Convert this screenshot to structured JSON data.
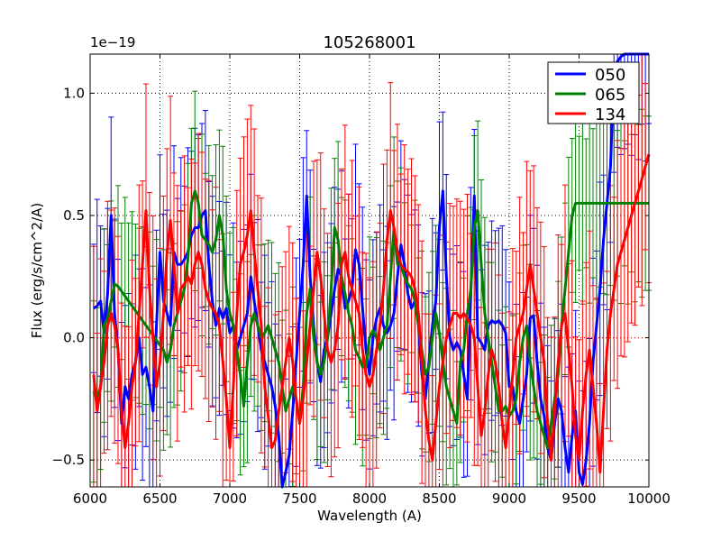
{
  "chart_data": {
    "type": "line",
    "title": "105268001",
    "xlabel": "Wavelength (A)",
    "ylabel": "Flux (erg/s/cm^2/A)",
    "offset_text": "1e−19",
    "scale": 1e-19,
    "xlim": [
      6000,
      10000
    ],
    "ylim": [
      -0.61,
      1.16
    ],
    "xticks": [
      6000,
      6500,
      7000,
      7500,
      8000,
      8500,
      9000,
      9500,
      10000
    ],
    "xtick_labels": [
      "6000",
      "6500",
      "7000",
      "7500",
      "8000",
      "8500",
      "9000",
      "9500",
      "10000"
    ],
    "yticks": [
      -0.5,
      0.0,
      0.5,
      1.0
    ],
    "ytick_labels": [
      "−0.5",
      "0.0",
      "0.5",
      "1.0"
    ],
    "grid": true,
    "legend_position": "top-right",
    "series": [
      {
        "name": "050",
        "color": "#0000ff",
        "x": [
          6025,
          6050,
          6075,
          6100,
          6125,
          6150,
          6175,
          6200,
          6225,
          6250,
          6275,
          6300,
          6325,
          6350,
          6375,
          6400,
          6425,
          6450,
          6475,
          6500,
          6525,
          6550,
          6575,
          6600,
          6625,
          6650,
          6675,
          6700,
          6725,
          6750,
          6775,
          6800,
          6825,
          6850,
          6875,
          6900,
          6925,
          6950,
          6975,
          7000,
          7025,
          7050,
          7075,
          7100,
          7125,
          7150,
          7175,
          7200,
          7225,
          7250,
          7275,
          7300,
          7325,
          7350,
          7375,
          7400,
          7425,
          7450,
          7475,
          7500,
          7525,
          7550,
          7575,
          7600,
          7625,
          7650,
          7675,
          7700,
          7725,
          7750,
          7775,
          7800,
          7825,
          7850,
          7875,
          7900,
          7925,
          7950,
          7975,
          8000,
          8025,
          8050,
          8075,
          8100,
          8125,
          8150,
          8175,
          8200,
          8225,
          8250,
          8275,
          8300,
          8325,
          8350,
          8375,
          8400,
          8425,
          8450,
          8475,
          8500,
          8525,
          8550,
          8575,
          8600,
          8625,
          8650,
          8675,
          8700,
          8725,
          8750,
          8775,
          8800,
          8825,
          8850,
          8875,
          8900,
          8925,
          8950,
          8975,
          9000,
          9025,
          9050,
          9075,
          9100,
          9125,
          9150,
          9175,
          9200,
          9225,
          9250,
          9275,
          9300,
          9325,
          9350,
          9375,
          9400,
          9425,
          9450,
          9475,
          9500,
          9525,
          9550,
          9575,
          9600,
          9625,
          9650,
          9675,
          9700,
          9725,
          9750,
          9775,
          9800,
          9825,
          9850,
          9875,
          9900,
          9925,
          9950,
          9975,
          10000
        ],
        "y": [
          0.12,
          0.13,
          0.15,
          0.02,
          0.18,
          0.5,
          0.1,
          -0.05,
          -0.35,
          -0.2,
          -0.25,
          -0.15,
          -0.1,
          0.0,
          -0.15,
          -0.12,
          -0.2,
          -0.3,
          0.05,
          0.35,
          0.15,
          0.1,
          0.05,
          0.35,
          0.3,
          0.3,
          0.32,
          0.35,
          0.42,
          0.45,
          0.45,
          0.5,
          0.52,
          0.3,
          0.15,
          0.05,
          0.12,
          0.08,
          0.12,
          0.02,
          0.05,
          -0.05,
          0.0,
          0.05,
          0.1,
          0.25,
          0.15,
          0.05,
          -0.05,
          -0.1,
          -0.15,
          -0.2,
          -0.28,
          -0.4,
          -0.62,
          -0.55,
          -0.48,
          -0.3,
          -0.1,
          0.1,
          0.3,
          0.58,
          0.25,
          0.05,
          -0.1,
          -0.18,
          -0.05,
          0.0,
          0.1,
          0.2,
          0.28,
          0.25,
          0.12,
          0.15,
          0.2,
          0.36,
          0.3,
          0.12,
          -0.05,
          -0.15,
          0.0,
          0.08,
          0.12,
          0.05,
          0.02,
          0.05,
          0.1,
          0.25,
          0.38,
          0.3,
          0.18,
          0.12,
          0.15,
          0.05,
          -0.15,
          -0.25,
          -0.1,
          0.05,
          0.15,
          0.45,
          0.6,
          0.25,
          0.0,
          -0.05,
          -0.02,
          -0.05,
          -0.15,
          -0.25,
          0.18,
          0.58,
          0.0,
          -0.02,
          -0.05,
          0.05,
          0.07,
          0.06,
          0.07,
          0.05,
          0.02,
          -0.2,
          -0.2,
          -0.3,
          -0.35,
          -0.25,
          -0.15,
          0.08,
          0.09,
          -0.1,
          -0.25,
          -0.32,
          -0.45,
          -0.5,
          -0.35,
          -0.25,
          -0.3,
          -0.45,
          -0.55,
          -0.4,
          -0.3,
          -0.55,
          -0.6,
          -0.5,
          -0.35,
          -0.1,
          0.05,
          0.2,
          0.4,
          0.55,
          0.7,
          1.1,
          1.13,
          1.15,
          1.16,
          1.16,
          1.16,
          1.16,
          1.16,
          1.16,
          1.16,
          1.16
        ],
        "err": 0.35
      },
      {
        "name": "065",
        "color": "#008000",
        "x": [
          6025,
          6050,
          6075,
          6100,
          6125,
          6150,
          6175,
          6200,
          6225,
          6250,
          6275,
          6300,
          6325,
          6350,
          6375,
          6400,
          6425,
          6450,
          6475,
          6500,
          6525,
          6550,
          6575,
          6600,
          6625,
          6650,
          6675,
          6700,
          6725,
          6750,
          6775,
          6800,
          6825,
          6850,
          6875,
          6900,
          6925,
          6950,
          6975,
          7000,
          7025,
          7050,
          7075,
          7100,
          7125,
          7150,
          7175,
          7200,
          7225,
          7250,
          7275,
          7300,
          7325,
          7350,
          7375,
          7400,
          7425,
          7450,
          7475,
          7500,
          7525,
          7550,
          7575,
          7600,
          7625,
          7650,
          7675,
          7700,
          7725,
          7750,
          7775,
          7800,
          7825,
          7850,
          7875,
          7900,
          7925,
          7950,
          7975,
          8000,
          8025,
          8050,
          8075,
          8100,
          8125,
          8150,
          8175,
          8200,
          8225,
          8250,
          8275,
          8300,
          8325,
          8350,
          8375,
          8400,
          8425,
          8450,
          8475,
          8500,
          8525,
          8550,
          8575,
          8600,
          8625,
          8650,
          8675,
          8700,
          8725,
          8750,
          8775,
          8800,
          8825,
          8850,
          8875,
          8900,
          8925,
          8950,
          8975,
          9000,
          9025,
          9050,
          9075,
          9100,
          9125,
          9150,
          9175,
          9200,
          9225,
          9250,
          9275,
          9300,
          9325,
          9350,
          9375,
          9400,
          9425,
          9450,
          9475,
          9500,
          9525,
          9550,
          9575,
          9600,
          9625,
          9650,
          9675,
          9700,
          9725,
          9750,
          9775,
          9800,
          9825,
          9850,
          9875,
          9900,
          9925,
          9950,
          9975,
          10000
        ],
        "y": [
          -0.22,
          -0.25,
          -0.2,
          0.05,
          0.08,
          0.15,
          0.22,
          0.21,
          0.19,
          0.17,
          0.15,
          0.13,
          0.11,
          0.09,
          0.07,
          0.05,
          0.03,
          0.01,
          -0.01,
          -0.03,
          -0.05,
          -0.1,
          -0.05,
          0.05,
          0.1,
          0.15,
          0.2,
          0.32,
          0.55,
          0.6,
          0.55,
          0.42,
          0.4,
          0.38,
          0.35,
          0.4,
          0.5,
          0.42,
          0.2,
          0.1,
          0.05,
          -0.05,
          -0.15,
          -0.28,
          -0.1,
          0.05,
          0.1,
          0.05,
          0.0,
          0.02,
          0.05,
          0.0,
          -0.05,
          -0.1,
          -0.2,
          -0.3,
          -0.25,
          -0.2,
          -0.25,
          -0.35,
          -0.2,
          0.1,
          0.2,
          0.0,
          -0.1,
          -0.15,
          -0.1,
          0.0,
          0.2,
          0.45,
          0.4,
          0.25,
          0.18,
          0.1,
          0.05,
          -0.05,
          -0.08,
          -0.12,
          -0.12,
          0.0,
          0.03,
          0.0,
          -0.05,
          0.0,
          0.05,
          0.25,
          0.45,
          0.3,
          0.3,
          0.25,
          0.22,
          0.2,
          0.15,
          0.05,
          -0.05,
          -0.15,
          -0.12,
          0.0,
          0.1,
          0.02,
          -0.1,
          -0.2,
          -0.25,
          -0.3,
          -0.35,
          -0.1,
          -0.05,
          0.1,
          0.2,
          0.45,
          0.52,
          0.3,
          0.1,
          0.0,
          -0.1,
          -0.2,
          -0.3,
          -0.3,
          -0.28,
          -0.32,
          -0.3,
          -0.25,
          -0.1,
          0.0,
          0.05,
          -0.1,
          -0.2,
          -0.3,
          -0.35,
          -0.4,
          -0.45,
          -0.35,
          -0.25,
          -0.15,
          0.05,
          0.2,
          0.35,
          0.5,
          0.55,
          0.55,
          0.55,
          0.55,
          0.55,
          0.55,
          0.55,
          0.55,
          0.55,
          0.55,
          0.55,
          0.55,
          0.55,
          0.55,
          0.55,
          0.55,
          0.55,
          0.55,
          0.55,
          0.55,
          0.55,
          0.55
        ],
        "err": 0.33
      },
      {
        "name": "134",
        "color": "#ff0000",
        "x": [
          6025,
          6050,
          6075,
          6100,
          6125,
          6150,
          6175,
          6200,
          6225,
          6250,
          6275,
          6300,
          6325,
          6350,
          6375,
          6400,
          6425,
          6450,
          6475,
          6500,
          6525,
          6550,
          6575,
          6600,
          6625,
          6650,
          6675,
          6700,
          6725,
          6750,
          6775,
          6800,
          6825,
          6850,
          6875,
          6900,
          6925,
          6950,
          6975,
          7000,
          7025,
          7050,
          7075,
          7100,
          7125,
          7150,
          7175,
          7200,
          7225,
          7250,
          7275,
          7300,
          7325,
          7350,
          7375,
          7400,
          7425,
          7450,
          7475,
          7500,
          7525,
          7550,
          7575,
          7600,
          7625,
          7650,
          7675,
          7700,
          7725,
          7750,
          7775,
          7800,
          7825,
          7850,
          7875,
          7900,
          7925,
          7950,
          7975,
          8000,
          8025,
          8050,
          8075,
          8100,
          8125,
          8150,
          8175,
          8200,
          8225,
          8250,
          8275,
          8300,
          8325,
          8350,
          8375,
          8400,
          8425,
          8450,
          8475,
          8500,
          8525,
          8550,
          8575,
          8600,
          8625,
          8650,
          8675,
          8700,
          8725,
          8750,
          8775,
          8800,
          8825,
          8850,
          8875,
          8900,
          8925,
          8950,
          8975,
          9000,
          9025,
          9050,
          9075,
          9100,
          9125,
          9150,
          9175,
          9200,
          9225,
          9250,
          9275,
          9300,
          9325,
          9350,
          9375,
          9400,
          9425,
          9450,
          9475,
          9500,
          9525,
          9550,
          9575,
          9600,
          9625,
          9650,
          9675,
          9700,
          9725,
          9750,
          9775,
          9800,
          9825,
          9850,
          9875,
          9900,
          9925,
          9950,
          9975,
          10000
        ],
        "y": [
          -0.15,
          -0.3,
          -0.2,
          -0.1,
          0.05,
          0.1,
          0.05,
          -0.05,
          -0.3,
          -0.45,
          -0.35,
          -0.2,
          -0.1,
          0.1,
          0.3,
          0.52,
          0.2,
          0.0,
          -0.2,
          -0.1,
          0.1,
          0.35,
          0.48,
          0.3,
          0.1,
          0.2,
          0.22,
          0.25,
          0.22,
          0.3,
          0.35,
          0.3,
          0.2,
          0.15,
          0.12,
          0.1,
          0.05,
          -0.1,
          -0.25,
          -0.45,
          -0.2,
          0.1,
          0.3,
          0.35,
          0.42,
          0.52,
          0.35,
          0.2,
          0.05,
          -0.2,
          -0.32,
          -0.45,
          -0.42,
          -0.3,
          -0.2,
          -0.1,
          0.0,
          -0.1,
          -0.25,
          -0.35,
          -0.25,
          -0.1,
          0.05,
          0.2,
          0.35,
          0.25,
          0.1,
          -0.05,
          -0.1,
          -0.05,
          0.05,
          0.3,
          0.35,
          0.25,
          0.2,
          0.15,
          0.1,
          -0.05,
          -0.15,
          -0.2,
          -0.15,
          -0.05,
          0.05,
          0.2,
          0.4,
          0.52,
          0.45,
          0.35,
          0.3,
          0.28,
          0.27,
          0.25,
          0.2,
          0.1,
          -0.1,
          -0.3,
          -0.42,
          -0.5,
          -0.35,
          -0.2,
          -0.1,
          0.0,
          0.05,
          0.1,
          0.1,
          0.08,
          0.1,
          0.08,
          0.05,
          0.0,
          -0.2,
          -0.4,
          -0.3,
          -0.15,
          -0.05,
          -0.1,
          -0.2,
          -0.35,
          -0.45,
          -0.3,
          -0.15,
          0.0,
          0.05,
          0.1,
          0.2,
          0.3,
          0.2,
          0.1,
          0.0,
          -0.1,
          -0.35,
          -0.5,
          -0.3,
          -0.1,
          0.05,
          0.1,
          -0.05,
          -0.2,
          -0.4,
          -0.5,
          -0.3,
          -0.15,
          -0.05,
          -0.2,
          -0.35,
          -0.55,
          -0.3,
          -0.05,
          0.1,
          0.2,
          0.3,
          0.35,
          0.4,
          0.45,
          0.5,
          0.55,
          0.6,
          0.65,
          0.7,
          0.75
        ],
        "err": 0.42
      }
    ]
  }
}
